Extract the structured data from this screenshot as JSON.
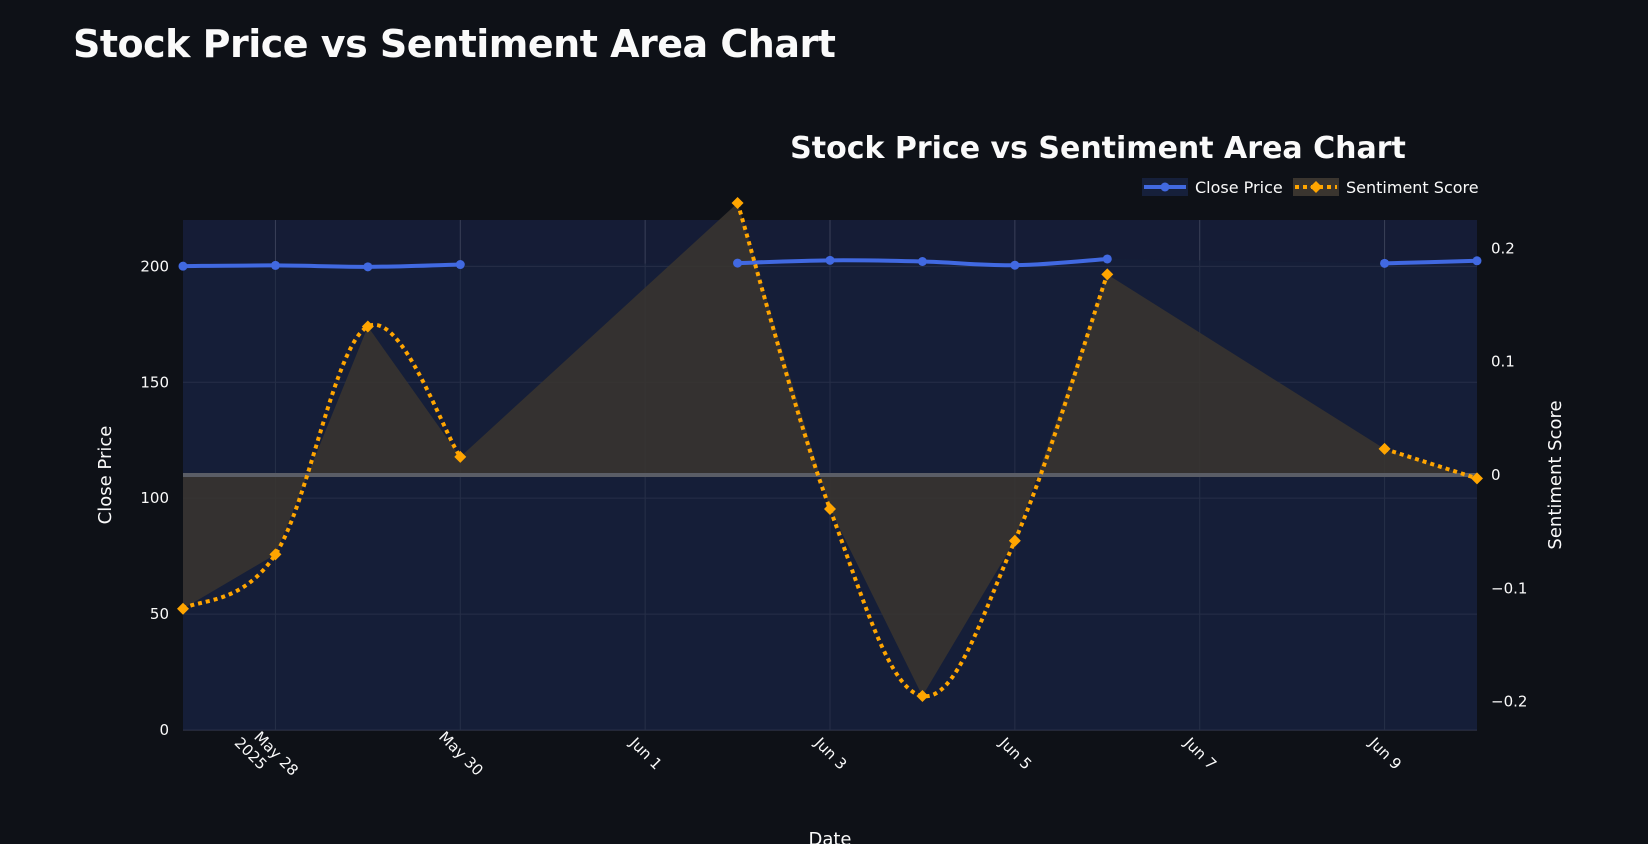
{
  "page": {
    "title": "Stock Price vs Sentiment Area Chart"
  },
  "chart_data": {
    "type": "area",
    "title": "Stock Price vs Sentiment Area Chart",
    "xlabel": "Date",
    "ylabel_left": "Close Price",
    "ylabel_right": "Sentiment Score",
    "x_tick_labels": [
      "May 28\n2025",
      "May 30",
      "Jun 1",
      "Jun 3",
      "Jun 5",
      "Jun 7",
      "Jun 9"
    ],
    "x_tick_dates": [
      "2025-05-28",
      "2025-05-30",
      "2025-06-01",
      "2025-06-03",
      "2025-06-05",
      "2025-06-07",
      "2025-06-09"
    ],
    "xlim": [
      "2025-05-27",
      "2025-06-10"
    ],
    "y_left_ticks": [
      0,
      50,
      100,
      150,
      200
    ],
    "y_left_lim": [
      0,
      220
    ],
    "y_right_ticks": [
      "0.2",
      "0.1",
      "0",
      "−0.1",
      "−0.2"
    ],
    "y_right_tick_values": [
      0.2,
      0.1,
      0,
      -0.1,
      -0.2
    ],
    "y_right_lim": [
      -0.225,
      0.225
    ],
    "grid": true,
    "legend_position": "top-right",
    "series": [
      {
        "name": "Close Price",
        "axis": "left",
        "color": "#4169e1",
        "fill": "#16203b",
        "marker": "circle",
        "line_style": "solid",
        "dates": [
          "2025-05-27",
          "2025-05-28",
          "2025-05-29",
          "2025-05-30",
          "2025-06-02",
          "2025-06-03",
          "2025-06-04",
          "2025-06-05",
          "2025-06-06",
          "2025-06-09",
          "2025-06-10"
        ],
        "values": [
          200.1,
          200.4,
          199.8,
          200.8,
          201.4,
          202.6,
          202.1,
          200.5,
          203.2,
          201.3,
          202.4
        ],
        "gaps_after": [
          "2025-05-30",
          "2025-06-06"
        ]
      },
      {
        "name": "Sentiment Score",
        "axis": "right",
        "color": "#ffa500",
        "fill": "#3a352f",
        "marker": "diamond",
        "line_style": "dotted",
        "dates": [
          "2025-05-27",
          "2025-05-28",
          "2025-05-29",
          "2025-05-30",
          "2025-06-02",
          "2025-06-03",
          "2025-06-04",
          "2025-06-05",
          "2025-06-06",
          "2025-06-09",
          "2025-06-10"
        ],
        "values": [
          -0.118,
          -0.07,
          0.131,
          0.016,
          0.24,
          -0.03,
          -0.195,
          -0.058,
          0.177,
          0.023,
          -0.003
        ],
        "gaps_after": [
          "2025-05-30",
          "2025-06-06"
        ]
      }
    ]
  }
}
